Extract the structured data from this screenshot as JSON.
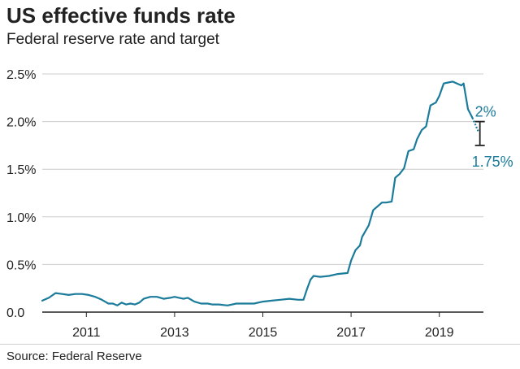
{
  "title": "US effective funds rate",
  "subtitle": "Federal reserve rate and target",
  "source": "Source: Federal Reserve",
  "colors": {
    "line": "#1b7b9b",
    "grid": "#cccccc",
    "axis": "#222222",
    "text": "#222222",
    "bracket": "#222222"
  },
  "chart_data": {
    "type": "line",
    "title": "US effective funds rate",
    "subtitle": "Federal reserve rate and target",
    "xlabel": "",
    "ylabel": "",
    "xlim": [
      2010.0,
      2020.0
    ],
    "ylim": [
      0,
      2.5
    ],
    "y_ticks": [
      0,
      0.5,
      1.0,
      1.5,
      2.0,
      2.5
    ],
    "y_tick_labels": [
      "0.0",
      "0.5%",
      "1.0%",
      "1.5%",
      "2.0%",
      "2.5%"
    ],
    "x_ticks": [
      2011,
      2013,
      2015,
      2017,
      2019
    ],
    "x_tick_labels": [
      "2011",
      "2013",
      "2015",
      "2017",
      "2019"
    ],
    "grid": true,
    "series": [
      {
        "x": [
          2010.0,
          2010.15,
          2010.3,
          2010.45,
          2010.6,
          2010.75,
          2010.9,
          2011.05,
          2011.2,
          2011.35,
          2011.5,
          2011.6,
          2011.7,
          2011.8,
          2011.9,
          2012.0,
          2012.1,
          2012.2,
          2012.3,
          2012.45,
          2012.6,
          2012.75,
          2012.9,
          2013.0,
          2013.1,
          2013.2,
          2013.3,
          2013.45,
          2013.6,
          2013.75,
          2013.85,
          2014.0,
          2014.2,
          2014.4,
          2014.6,
          2014.8,
          2015.0,
          2015.2,
          2015.4,
          2015.6,
          2015.8,
          2015.92,
          2016.0,
          2016.08,
          2016.15,
          2016.3,
          2016.5,
          2016.7,
          2016.92,
          2017.0,
          2017.1,
          2017.2,
          2017.25,
          2017.4,
          2017.5,
          2017.7,
          2017.8,
          2017.92,
          2018.0,
          2018.1,
          2018.2,
          2018.3,
          2018.42,
          2018.5,
          2018.6,
          2018.7,
          2018.8,
          2018.92,
          2019.0,
          2019.1,
          2019.2,
          2019.3,
          2019.5,
          2019.55,
          2019.65,
          2019.75
        ],
        "values": [
          0.12,
          0.15,
          0.2,
          0.19,
          0.18,
          0.19,
          0.19,
          0.18,
          0.16,
          0.13,
          0.09,
          0.09,
          0.07,
          0.1,
          0.08,
          0.09,
          0.08,
          0.1,
          0.14,
          0.16,
          0.16,
          0.14,
          0.15,
          0.16,
          0.15,
          0.14,
          0.15,
          0.11,
          0.09,
          0.09,
          0.08,
          0.08,
          0.07,
          0.09,
          0.09,
          0.09,
          0.11,
          0.12,
          0.13,
          0.14,
          0.13,
          0.13,
          0.24,
          0.34,
          0.38,
          0.37,
          0.38,
          0.4,
          0.41,
          0.54,
          0.65,
          0.7,
          0.79,
          0.91,
          1.07,
          1.15,
          1.15,
          1.16,
          1.41,
          1.45,
          1.51,
          1.69,
          1.71,
          1.82,
          1.91,
          1.95,
          2.17,
          2.2,
          2.27,
          2.4,
          2.41,
          2.42,
          2.38,
          2.4,
          2.13,
          2.04
        ]
      }
    ],
    "projection": {
      "x": [
        2019.75,
        2019.88
      ],
      "values": [
        2.04,
        1.9
      ]
    },
    "target_range": {
      "x": 2019.92,
      "low": 1.75,
      "high": 2.0,
      "low_label": "1.75%",
      "high_label": "2%"
    }
  }
}
